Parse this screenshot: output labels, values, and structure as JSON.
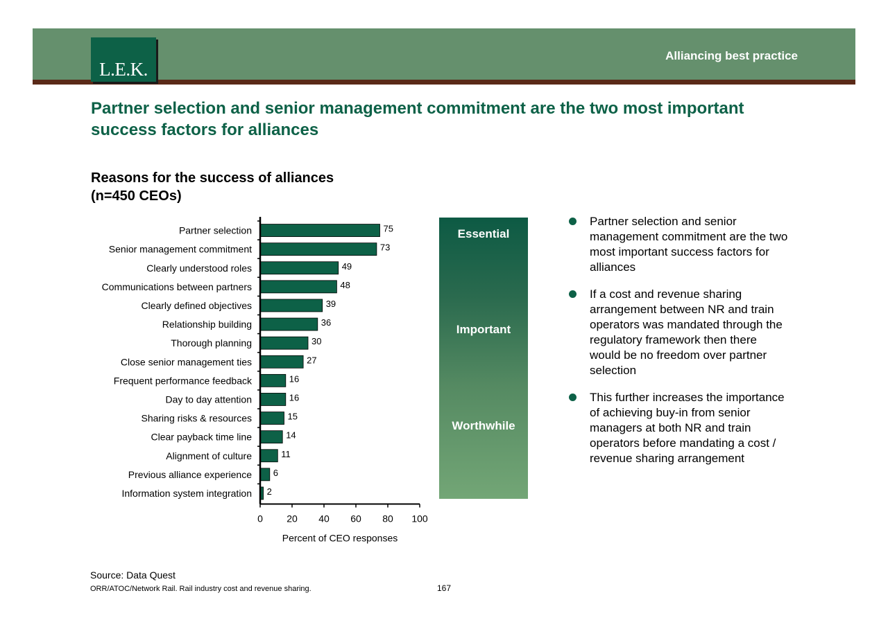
{
  "header": {
    "logo_text": "L.E.K.",
    "section_label": "Alliancing best practice",
    "headline": "Partner selection and senior management commitment are the two most important success factors for alliances"
  },
  "chart_title": {
    "line1": "Reasons for the success of alliances",
    "line2": "(n=450 CEOs)"
  },
  "chart_data": {
    "type": "bar",
    "orientation": "horizontal",
    "categories": [
      "Partner selection",
      "Senior management commitment",
      "Clearly understood roles",
      "Communications between partners",
      "Clearly defined objectives",
      "Relationship building",
      "Thorough planning",
      "Close senior management ties",
      "Frequent performance feedback",
      "Day to day attention",
      "Sharing risks & resources",
      "Clear payback time line",
      "Alignment of culture",
      "Previous alliance experience",
      "Information system integration"
    ],
    "values": [
      75,
      73,
      49,
      48,
      39,
      36,
      30,
      27,
      16,
      16,
      15,
      14,
      11,
      6,
      2
    ],
    "xlabel": "Percent of CEO responses",
    "ylabel": "",
    "xlim": [
      0,
      100
    ],
    "xticks": [
      0,
      20,
      40,
      60,
      80,
      100
    ],
    "bar_color": "#0d6147",
    "grid": false,
    "data_labels": true
  },
  "tiers": [
    "Essential",
    "Important",
    "Worthwhile"
  ],
  "bullets": [
    "Partner selection and senior management commitment are the two most important success factors for alliances",
    "If a cost and revenue sharing arrangement between NR and train operators was mandated through the regulatory framework then there would be no freedom over partner selection",
    "This further increases the importance of achieving buy-in from senior managers at both NR and train operators before mandating a cost / revenue sharing arrangement"
  ],
  "footer": {
    "source": "Source: Data Quest",
    "note": "ORR/ATOC/Network Rail.  Rail industry cost and revenue sharing.",
    "page_number": "167"
  },
  "colors": {
    "brand_green": "#0d6147",
    "header_band": "#65906d",
    "header_rule": "#5a2a18"
  }
}
